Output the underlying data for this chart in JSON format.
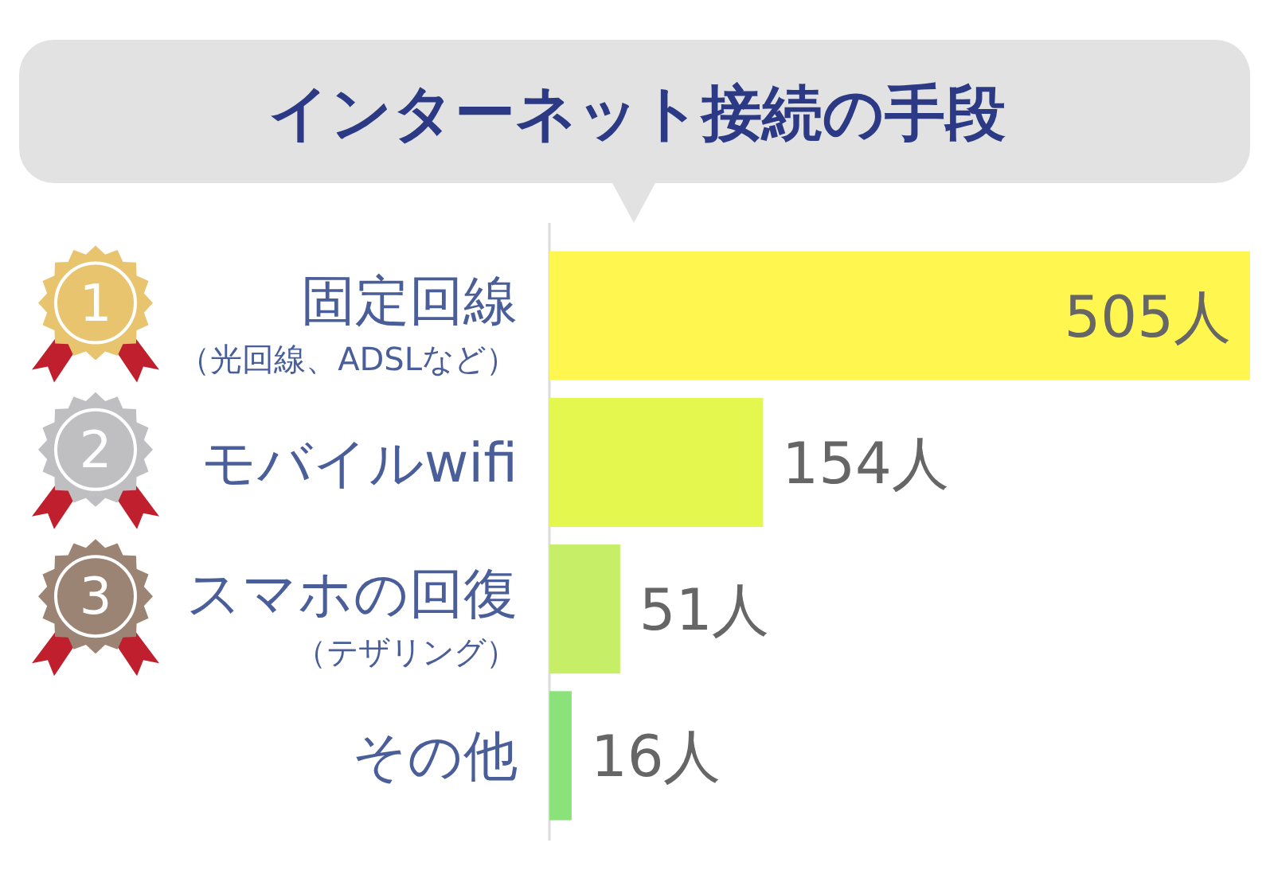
{
  "chart_data": {
    "type": "bar",
    "orientation": "horizontal",
    "title": "インターネット接続の手段",
    "categories": [
      "固定回線（光回線、ADSLなど）",
      "モバイルwifi",
      "スマホの回復（テザリング）",
      "その他"
    ],
    "values": [
      505,
      154,
      51,
      16
    ],
    "colors": [
      "#fff650",
      "#e3f74f",
      "#c6ef67",
      "#8be27a"
    ],
    "value_labels": [
      "505人",
      "154人",
      "51人",
      "16人"
    ],
    "annotations": [
      "1",
      "2",
      "3"
    ]
  }
}
